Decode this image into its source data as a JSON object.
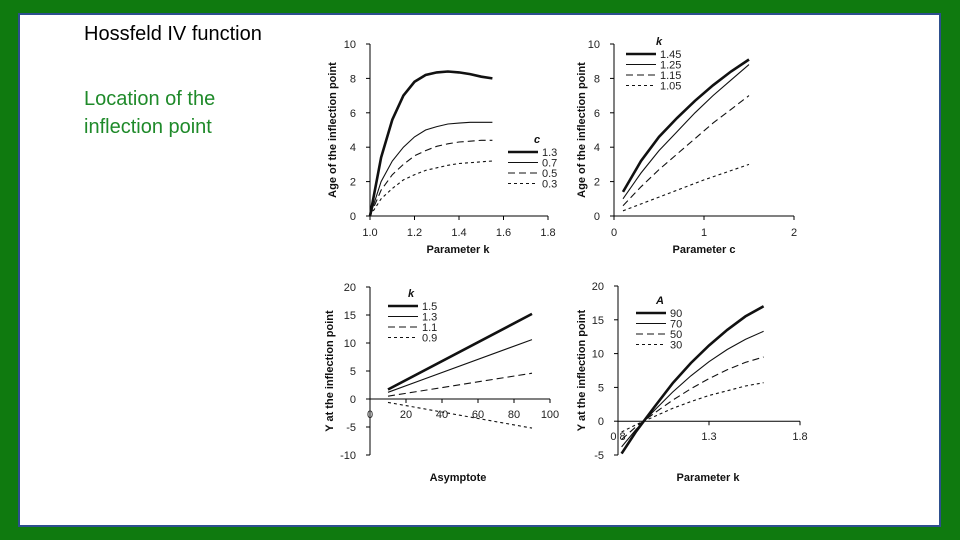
{
  "slide": {
    "title": "Hossfeld IV function",
    "subtitle": "Location of the inflection point"
  },
  "chart_data": [
    {
      "type": "line",
      "xlabel": "Parameter k",
      "ylabel": "Age of the inflection point",
      "xlim": [
        1.0,
        1.8
      ],
      "ylim": [
        0,
        10
      ],
      "xticks": [
        "1.0",
        "1.2",
        "1.4",
        "1.6",
        "1.8"
      ],
      "yticks": [
        "0",
        "2",
        "4",
        "6",
        "8",
        "10"
      ],
      "legend_title": "c",
      "legend_position": "right",
      "series": [
        {
          "name": "1.3",
          "style": "thick",
          "x": [
            1.0,
            1.05,
            1.1,
            1.15,
            1.2,
            1.25,
            1.3,
            1.35,
            1.4,
            1.45,
            1.5,
            1.55
          ],
          "y": [
            0,
            3.4,
            5.6,
            7.0,
            7.8,
            8.2,
            8.35,
            8.4,
            8.35,
            8.25,
            8.1,
            8.0
          ]
        },
        {
          "name": "0.7",
          "style": "solid",
          "x": [
            1.0,
            1.05,
            1.1,
            1.15,
            1.2,
            1.25,
            1.3,
            1.35,
            1.4,
            1.45,
            1.5,
            1.55
          ],
          "y": [
            0,
            2.0,
            3.2,
            4.0,
            4.6,
            5.0,
            5.2,
            5.35,
            5.4,
            5.45,
            5.45,
            5.45
          ]
        },
        {
          "name": "0.5",
          "style": "dash",
          "x": [
            1.0,
            1.05,
            1.1,
            1.15,
            1.2,
            1.25,
            1.3,
            1.35,
            1.4,
            1.45,
            1.5,
            1.55
          ],
          "y": [
            0,
            1.5,
            2.4,
            3.0,
            3.5,
            3.8,
            4.05,
            4.2,
            4.3,
            4.35,
            4.4,
            4.4
          ]
        },
        {
          "name": "0.3",
          "style": "dot",
          "x": [
            1.0,
            1.05,
            1.1,
            1.15,
            1.2,
            1.25,
            1.3,
            1.35,
            1.4,
            1.45,
            1.5,
            1.55
          ],
          "y": [
            0,
            1.0,
            1.6,
            2.1,
            2.4,
            2.65,
            2.8,
            2.95,
            3.05,
            3.1,
            3.15,
            3.2
          ]
        }
      ]
    },
    {
      "type": "line",
      "xlabel": "Parameter c",
      "ylabel": "Age of the inflection point",
      "xlim": [
        0,
        2
      ],
      "ylim": [
        0,
        10
      ],
      "xticks": [
        "0",
        "1",
        "2"
      ],
      "yticks": [
        "0",
        "2",
        "4",
        "6",
        "8",
        "10"
      ],
      "legend_title": "k",
      "legend_position": "top-left",
      "series": [
        {
          "name": "1.45",
          "style": "thick",
          "x": [
            0.1,
            0.3,
            0.5,
            0.7,
            0.9,
            1.1,
            1.3,
            1.5
          ],
          "y": [
            1.4,
            3.2,
            4.6,
            5.7,
            6.7,
            7.6,
            8.4,
            9.1
          ]
        },
        {
          "name": "1.25",
          "style": "solid",
          "x": [
            0.1,
            0.3,
            0.5,
            0.7,
            0.9,
            1.1,
            1.3,
            1.5
          ],
          "y": [
            1.0,
            2.5,
            3.8,
            4.9,
            6.0,
            7.0,
            7.9,
            8.8
          ]
        },
        {
          "name": "1.15",
          "style": "dash",
          "x": [
            0.1,
            0.3,
            0.5,
            0.7,
            0.9,
            1.1,
            1.3,
            1.5
          ],
          "y": [
            0.6,
            1.7,
            2.7,
            3.6,
            4.5,
            5.4,
            6.2,
            7.0
          ]
        },
        {
          "name": "1.05",
          "style": "dot",
          "x": [
            0.1,
            0.5,
            1.0,
            1.5
          ],
          "y": [
            0.3,
            1.1,
            2.1,
            3.0
          ]
        }
      ]
    },
    {
      "type": "line",
      "xlabel": "Asymptote",
      "ylabel": "Y at the inflection point",
      "xlim": [
        0,
        100
      ],
      "ylim": [
        -10,
        20
      ],
      "xticks": [
        "0",
        "20",
        "40",
        "60",
        "80",
        "100"
      ],
      "yticks": [
        "-10",
        "-5",
        "0",
        "5",
        "10",
        "15",
        "20"
      ],
      "legend_title": "k",
      "legend_position": "top-left",
      "series": [
        {
          "name": "1.5",
          "style": "thick",
          "x": [
            10,
            90
          ],
          "y": [
            1.7,
            15.2
          ]
        },
        {
          "name": "1.3",
          "style": "solid",
          "x": [
            10,
            90
          ],
          "y": [
            1.2,
            10.6
          ]
        },
        {
          "name": "1.1",
          "style": "dash",
          "x": [
            10,
            90
          ],
          "y": [
            0.5,
            4.6
          ]
        },
        {
          "name": "0.9",
          "style": "dot",
          "x": [
            10,
            90
          ],
          "y": [
            -0.6,
            -5.2
          ]
        }
      ]
    },
    {
      "type": "line",
      "xlabel": "Parameter k",
      "ylabel": "Y at the inflection point",
      "xlim": [
        0.8,
        1.8
      ],
      "ylim": [
        -5,
        20
      ],
      "xticks": [
        "0.8",
        "1.3",
        "1.8"
      ],
      "yticks": [
        "-5",
        "0",
        "5",
        "10",
        "15",
        "20"
      ],
      "legend_title": "A",
      "legend_position": "top-left",
      "series": [
        {
          "name": "90",
          "style": "thick",
          "x": [
            0.82,
            0.9,
            1.0,
            1.1,
            1.2,
            1.3,
            1.4,
            1.5,
            1.6
          ],
          "y": [
            -4.8,
            -1.5,
            2.1,
            5.6,
            8.6,
            11.2,
            13.5,
            15.5,
            17.0
          ]
        },
        {
          "name": "70",
          "style": "solid",
          "x": [
            0.82,
            0.9,
            1.0,
            1.1,
            1.2,
            1.3,
            1.4,
            1.5,
            1.6
          ],
          "y": [
            -3.8,
            -1.2,
            1.6,
            4.3,
            6.7,
            8.8,
            10.6,
            12.1,
            13.3
          ]
        },
        {
          "name": "50",
          "style": "dash",
          "x": [
            0.82,
            0.9,
            1.0,
            1.1,
            1.2,
            1.3,
            1.4,
            1.5,
            1.6
          ],
          "y": [
            -2.7,
            -0.8,
            1.2,
            3.1,
            4.8,
            6.3,
            7.6,
            8.7,
            9.5
          ]
        },
        {
          "name": "30",
          "style": "dot",
          "x": [
            0.82,
            0.9,
            1.0,
            1.1,
            1.2,
            1.3,
            1.4,
            1.5,
            1.6
          ],
          "y": [
            -1.6,
            -0.5,
            0.7,
            1.9,
            2.9,
            3.8,
            4.5,
            5.2,
            5.7
          ]
        }
      ]
    }
  ]
}
